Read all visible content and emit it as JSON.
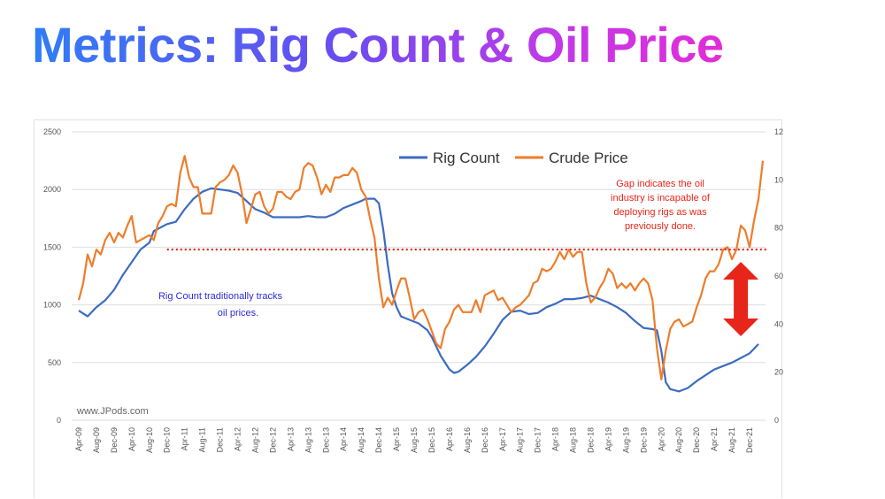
{
  "slide": {
    "title": "Metrics: Rig Count & Oil Price"
  },
  "colors": {
    "rig": "#3c6cc0",
    "crude": "#ee7d2b",
    "threshold": "#e0231a",
    "arrow": "#e8251a",
    "grid": "#dedede"
  },
  "chart_data": {
    "type": "line",
    "title": "",
    "xlabel": "",
    "ylabel": "",
    "y2label": "",
    "ylim": [
      0,
      2500
    ],
    "y2lim": [
      0,
      120
    ],
    "yticks": [
      "0",
      "500",
      "1000",
      "1500",
      "2000",
      "2500"
    ],
    "y2ticks": [
      "0",
      "20",
      "40",
      "60",
      "80",
      "100",
      "120"
    ],
    "x_ticks": [
      "Apr-09",
      "Aug-09",
      "Dec-09",
      "Apr-10",
      "Aug-10",
      "Dec-10",
      "Apr-11",
      "Aug-11",
      "Dec-11",
      "Apr-12",
      "Aug-12",
      "Dec-12",
      "Apr-13",
      "Aug-13",
      "Dec-13",
      "Apr-14",
      "Aug-14",
      "Dec-14",
      "Apr-15",
      "Aug-15",
      "Dec-15",
      "Apr-16",
      "Aug-16",
      "Dec-16",
      "Apr-17",
      "Aug-17",
      "Dec-17",
      "Apr-18",
      "Aug-18",
      "Dec-18",
      "Apr-19",
      "Aug-19",
      "Dec-19",
      "Apr-20",
      "Aug-20",
      "Dec-20",
      "Apr-21",
      "Aug-21",
      "Dec-21"
    ],
    "x_range": [
      "Apr-09",
      "Feb-22"
    ],
    "grid": "horizontal",
    "legend": {
      "placement": "top-center",
      "entries": [
        "Rig Count",
        "Crude Price"
      ]
    },
    "series": [
      {
        "name": "Rig Count",
        "axis": "left",
        "points": [
          [
            "Apr-09",
            950
          ],
          [
            "Jun-09",
            900
          ],
          [
            "Aug-09",
            980
          ],
          [
            "Oct-09",
            1040
          ],
          [
            "Dec-09",
            1130
          ],
          [
            "Feb-10",
            1260
          ],
          [
            "Apr-10",
            1370
          ],
          [
            "Jun-10",
            1480
          ],
          [
            "Aug-10",
            1540
          ],
          [
            "Sep-10",
            1640
          ],
          [
            "Dec-10",
            1700
          ],
          [
            "Feb-11",
            1720
          ],
          [
            "Apr-11",
            1830
          ],
          [
            "Jun-11",
            1920
          ],
          [
            "Aug-11",
            1980
          ],
          [
            "Oct-11",
            2010
          ],
          [
            "Dec-11",
            2000
          ],
          [
            "Feb-12",
            1990
          ],
          [
            "Apr-12",
            1970
          ],
          [
            "Jun-12",
            1900
          ],
          [
            "Aug-12",
            1830
          ],
          [
            "Oct-12",
            1800
          ],
          [
            "Dec-12",
            1760
          ],
          [
            "Feb-13",
            1760
          ],
          [
            "Apr-13",
            1760
          ],
          [
            "Jun-13",
            1760
          ],
          [
            "Aug-13",
            1770
          ],
          [
            "Oct-13",
            1760
          ],
          [
            "Dec-13",
            1760
          ],
          [
            "Feb-14",
            1790
          ],
          [
            "Apr-14",
            1840
          ],
          [
            "Jun-14",
            1870
          ],
          [
            "Aug-14",
            1900
          ],
          [
            "Sep-14",
            1920
          ],
          [
            "Nov-14",
            1920
          ],
          [
            "Dec-14",
            1880
          ],
          [
            "Jan-15",
            1650
          ],
          [
            "Feb-15",
            1350
          ],
          [
            "Mar-15",
            1100
          ],
          [
            "Apr-15",
            980
          ],
          [
            "May-15",
            900
          ],
          [
            "Jul-15",
            870
          ],
          [
            "Sep-15",
            840
          ],
          [
            "Nov-15",
            780
          ],
          [
            "Dec-15",
            720
          ],
          [
            "Feb-16",
            560
          ],
          [
            "Apr-16",
            440
          ],
          [
            "May-16",
            410
          ],
          [
            "Jun-16",
            420
          ],
          [
            "Aug-16",
            480
          ],
          [
            "Oct-16",
            550
          ],
          [
            "Dec-16",
            640
          ],
          [
            "Feb-17",
            750
          ],
          [
            "Apr-17",
            870
          ],
          [
            "Jun-17",
            940
          ],
          [
            "Aug-17",
            950
          ],
          [
            "Oct-17",
            920
          ],
          [
            "Dec-17",
            930
          ],
          [
            "Feb-18",
            980
          ],
          [
            "Apr-18",
            1010
          ],
          [
            "Jun-18",
            1050
          ],
          [
            "Aug-18",
            1050
          ],
          [
            "Oct-18",
            1060
          ],
          [
            "Dec-18",
            1080
          ],
          [
            "Feb-19",
            1050
          ],
          [
            "Apr-19",
            1020
          ],
          [
            "Jun-19",
            980
          ],
          [
            "Aug-19",
            930
          ],
          [
            "Oct-19",
            860
          ],
          [
            "Dec-19",
            800
          ],
          [
            "Feb-20",
            790
          ],
          [
            "Mar-20",
            780
          ],
          [
            "Apr-20",
            600
          ],
          [
            "May-20",
            330
          ],
          [
            "Jun-20",
            270
          ],
          [
            "Aug-20",
            250
          ],
          [
            "Oct-20",
            280
          ],
          [
            "Dec-20",
            340
          ],
          [
            "Feb-21",
            390
          ],
          [
            "Apr-21",
            440
          ],
          [
            "Jun-21",
            470
          ],
          [
            "Aug-21",
            500
          ],
          [
            "Oct-21",
            540
          ],
          [
            "Dec-21",
            580
          ],
          [
            "Feb-22",
            660
          ]
        ]
      },
      {
        "name": "Crude Price",
        "axis": "right",
        "points": [
          [
            "Apr-09",
            50
          ],
          [
            "May-09",
            57
          ],
          [
            "Jun-09",
            69
          ],
          [
            "Jul-09",
            64
          ],
          [
            "Aug-09",
            71
          ],
          [
            "Sep-09",
            69
          ],
          [
            "Oct-09",
            75
          ],
          [
            "Nov-09",
            78
          ],
          [
            "Dec-09",
            74
          ],
          [
            "Jan-10",
            78
          ],
          [
            "Feb-10",
            76
          ],
          [
            "Mar-10",
            81
          ],
          [
            "Apr-10",
            85
          ],
          [
            "May-10",
            74
          ],
          [
            "Jun-10",
            75
          ],
          [
            "Jul-10",
            76
          ],
          [
            "Aug-10",
            77
          ],
          [
            "Sep-10",
            75
          ],
          [
            "Oct-10",
            82
          ],
          [
            "Nov-10",
            85
          ],
          [
            "Dec-10",
            89
          ],
          [
            "Jan-11",
            90
          ],
          [
            "Feb-11",
            89
          ],
          [
            "Mar-11",
            103
          ],
          [
            "Apr-11",
            110
          ],
          [
            "May-11",
            101
          ],
          [
            "Jun-11",
            97
          ],
          [
            "Jul-11",
            97
          ],
          [
            "Aug-11",
            86
          ],
          [
            "Sep-11",
            86
          ],
          [
            "Oct-11",
            86
          ],
          [
            "Nov-11",
            97
          ],
          [
            "Dec-11",
            99
          ],
          [
            "Jan-12",
            100
          ],
          [
            "Feb-12",
            102
          ],
          [
            "Mar-12",
            106
          ],
          [
            "Apr-12",
            103
          ],
          [
            "May-12",
            94
          ],
          [
            "Jun-12",
            82
          ],
          [
            "Jul-12",
            88
          ],
          [
            "Aug-12",
            94
          ],
          [
            "Sep-12",
            95
          ],
          [
            "Oct-12",
            89
          ],
          [
            "Nov-12",
            86
          ],
          [
            "Dec-12",
            88
          ],
          [
            "Jan-13",
            95
          ],
          [
            "Feb-13",
            95
          ],
          [
            "Mar-13",
            93
          ],
          [
            "Apr-13",
            92
          ],
          [
            "May-13",
            95
          ],
          [
            "Jun-13",
            96
          ],
          [
            "Jul-13",
            105
          ],
          [
            "Aug-13",
            107
          ],
          [
            "Sep-13",
            106
          ],
          [
            "Oct-13",
            101
          ],
          [
            "Nov-13",
            94
          ],
          [
            "Dec-13",
            98
          ],
          [
            "Jan-14",
            95
          ],
          [
            "Feb-14",
            101
          ],
          [
            "Mar-14",
            101
          ],
          [
            "Apr-14",
            102
          ],
          [
            "May-14",
            102
          ],
          [
            "Jun-14",
            105
          ],
          [
            "Jul-14",
            103
          ],
          [
            "Aug-14",
            96
          ],
          [
            "Sep-14",
            93
          ],
          [
            "Oct-14",
            84
          ],
          [
            "Nov-14",
            76
          ],
          [
            "Dec-14",
            59
          ],
          [
            "Jan-15",
            47
          ],
          [
            "Feb-15",
            51
          ],
          [
            "Mar-15",
            48
          ],
          [
            "Apr-15",
            54
          ],
          [
            "May-15",
            59
          ],
          [
            "Jun-15",
            59
          ],
          [
            "Jul-15",
            51
          ],
          [
            "Aug-15",
            42
          ],
          [
            "Sep-15",
            45
          ],
          [
            "Oct-15",
            46
          ],
          [
            "Nov-15",
            42
          ],
          [
            "Dec-15",
            37
          ],
          [
            "Jan-16",
            32
          ],
          [
            "Feb-16",
            30
          ],
          [
            "Mar-16",
            38
          ],
          [
            "Apr-16",
            41
          ],
          [
            "May-16",
            46
          ],
          [
            "Jun-16",
            48
          ],
          [
            "Jul-16",
            45
          ],
          [
            "Aug-16",
            45
          ],
          [
            "Sep-16",
            45
          ],
          [
            "Oct-16",
            50
          ],
          [
            "Nov-16",
            45
          ],
          [
            "Dec-16",
            52
          ],
          [
            "Jan-17",
            53
          ],
          [
            "Feb-17",
            54
          ],
          [
            "Mar-17",
            50
          ],
          [
            "Apr-17",
            51
          ],
          [
            "May-17",
            48
          ],
          [
            "Jun-17",
            45
          ],
          [
            "Jul-17",
            47
          ],
          [
            "Aug-17",
            48
          ],
          [
            "Sep-17",
            50
          ],
          [
            "Oct-17",
            52
          ],
          [
            "Nov-17",
            57
          ],
          [
            "Dec-17",
            58
          ],
          [
            "Jan-18",
            63
          ],
          [
            "Feb-18",
            62
          ],
          [
            "Mar-18",
            63
          ],
          [
            "Apr-18",
            66
          ],
          [
            "May-18",
            70
          ],
          [
            "Jun-18",
            67
          ],
          [
            "Jul-18",
            71
          ],
          [
            "Aug-18",
            68
          ],
          [
            "Sep-18",
            70
          ],
          [
            "Oct-18",
            70
          ],
          [
            "Nov-18",
            57
          ],
          [
            "Dec-18",
            49
          ],
          [
            "Jan-19",
            51
          ],
          [
            "Feb-19",
            55
          ],
          [
            "Mar-19",
            58
          ],
          [
            "Apr-19",
            63
          ],
          [
            "May-19",
            61
          ],
          [
            "Jun-19",
            55
          ],
          [
            "Jul-19",
            57
          ],
          [
            "Aug-19",
            55
          ],
          [
            "Sep-19",
            57
          ],
          [
            "Oct-19",
            54
          ],
          [
            "Nov-19",
            57
          ],
          [
            "Dec-19",
            59
          ],
          [
            "Jan-20",
            57
          ],
          [
            "Feb-20",
            50
          ],
          [
            "Mar-20",
            30
          ],
          [
            "Apr-20",
            17
          ],
          [
            "May-20",
            29
          ],
          [
            "Jun-20",
            38
          ],
          [
            "Jul-20",
            41
          ],
          [
            "Aug-20",
            42
          ],
          [
            "Sep-20",
            39
          ],
          [
            "Oct-20",
            40
          ],
          [
            "Nov-20",
            41
          ],
          [
            "Dec-20",
            47
          ],
          [
            "Jan-21",
            52
          ],
          [
            "Feb-21",
            59
          ],
          [
            "Mar-21",
            62
          ],
          [
            "Apr-21",
            62
          ],
          [
            "May-21",
            65
          ],
          [
            "Jun-21",
            71
          ],
          [
            "Jul-21",
            72
          ],
          [
            "Aug-21",
            67
          ],
          [
            "Sep-21",
            71
          ],
          [
            "Oct-21",
            81
          ],
          [
            "Nov-21",
            79
          ],
          [
            "Dec-21",
            72
          ],
          [
            "Jan-22",
            83
          ],
          [
            "Feb-22",
            92
          ],
          [
            "Mar-22",
            108
          ]
        ]
      }
    ],
    "threshold_line": {
      "axis": "left",
      "value": 1480,
      "from": "Dec-10",
      "to": "Mar-22",
      "style": "dotted"
    },
    "annotations": {
      "gap_text": [
        "Gap indicates the oil",
        "industry is incapable of",
        "deploying rigs as was",
        "previously done."
      ],
      "tracks_text": [
        "Rig Count traditionally tracks",
        "oil prices."
      ],
      "watermark": "www.JPods.com",
      "arrow": {
        "from_value_left": 790,
        "to_value_left": 1480,
        "at": "Oct-21",
        "meaning": "gap"
      }
    }
  }
}
